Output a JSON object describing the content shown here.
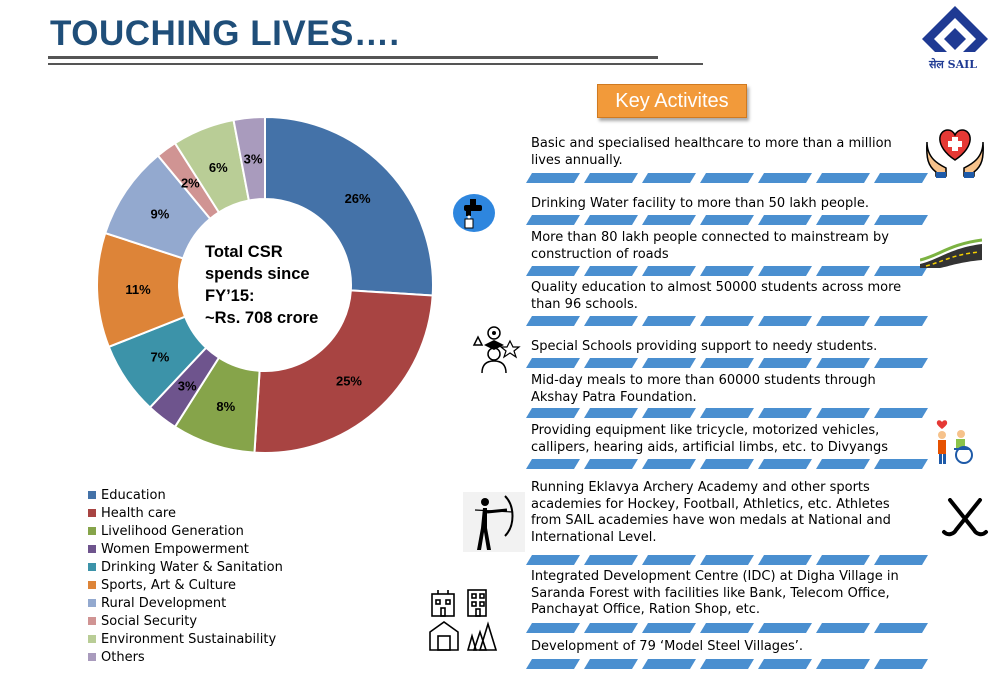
{
  "title": "TOUCHING LIVES….",
  "logo": {
    "label": "सेल SAIL"
  },
  "key_activities_heading": "Key Activites",
  "donut_center": [
    "Total CSR",
    "spends since",
    "FY’15:",
    "~Rs. 708 crore"
  ],
  "chart_data": {
    "type": "pie",
    "categories": [
      "Education",
      "Health care",
      "Livelihood Generation",
      "Women Empowerment",
      "Drinking Water & Sanitation",
      "Sports, Art & Culture",
      "Rural Development",
      "Social Security",
      "Environment Sustainability",
      "Others"
    ],
    "values": [
      26,
      25,
      8,
      3,
      7,
      11,
      9,
      2,
      6,
      3
    ],
    "data_labels": [
      "26%",
      "25%",
      "8%",
      "3%",
      "7%",
      "11%",
      "9%",
      "2%",
      "6%",
      "3%"
    ],
    "colors": [
      "#4472a8",
      "#a84442",
      "#86a44a",
      "#6e548d",
      "#3c93a9",
      "#dd8438",
      "#93a9cf",
      "#d09493",
      "#b9cd96",
      "#a99bbd"
    ],
    "legend_placement": "bottom-left"
  },
  "activities": [
    "Basic and specialised healthcare to more than a million lives annually.",
    "Drinking Water facility to more than 50 lakh people.",
    "More than 80 lakh people connected to mainstream by construction of roads",
    "Quality education to almost 50000 students across more than 96 schools.",
    "Special Schools providing support to needy students.",
    "Mid-day meals to more than 60000 students through Akshay Patra Foundation.",
    "Providing equipment like tricycle, motorized vehicles, callipers, hearing aids, artificial limbs, etc. to Divyangs",
    "Running Eklavya Archery Academy and other sports academies for Hockey, Football, Athletics, etc. Athletes from SAIL academies have won medals at National and International Level.",
    "Integrated Development Centre (IDC) at Digha Village in Saranda Forest with facilities like Bank, Telecom Office, Panchayat Office, Ration Shop, etc.",
    "Development of 79 ‘Model Steel Villages’."
  ],
  "accent_color": "#1f4e79",
  "divider_color": "#4a8fd0",
  "icons": [
    "healthcare-hands-heart-icon",
    "water-tap-icon",
    "road-icon",
    "education-student-icon",
    "divyang-wheelchair-icon",
    "archery-icon",
    "hockey-sticks-icon",
    "village-buildings-icon"
  ]
}
